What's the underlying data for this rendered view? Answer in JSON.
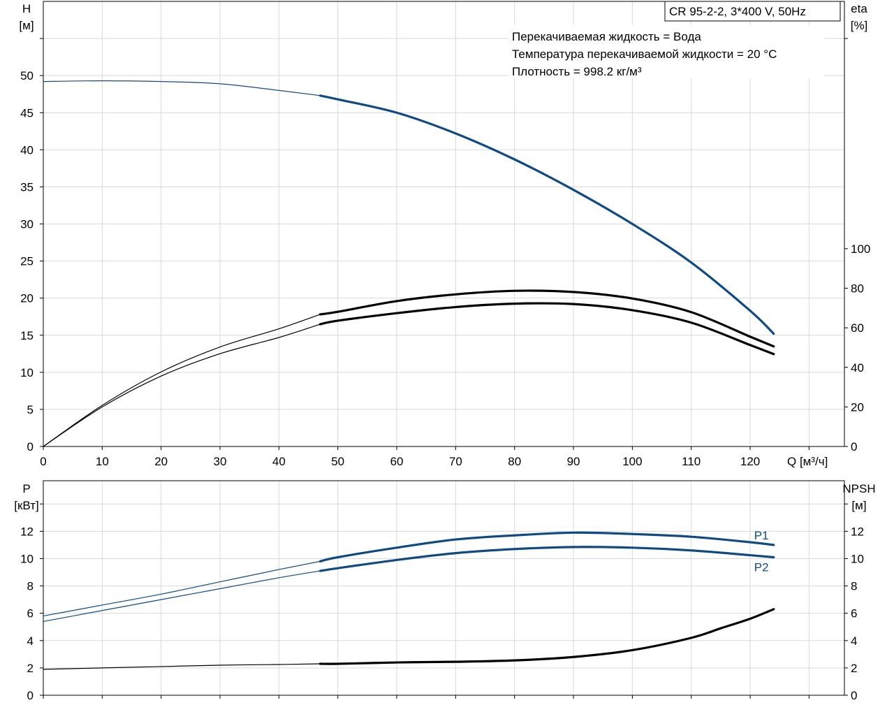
{
  "model_label": "CR 95-2-2, 3*400 V, 50Hz",
  "info_lines": [
    "Перекачиваемая жидкость = Вода",
    "Температура перекачиваемой жидкости = 20 °C",
    "Плотность = 998.2 кг/м³"
  ],
  "colors": {
    "blue": "#0f4a84",
    "black": "#000000",
    "grid": "#d9d9d9"
  },
  "chart_data": [
    {
      "type": "line",
      "id": "head-efficiency",
      "xlabel": "Q [м³/ч]",
      "ylabel_left": [
        "H",
        "[м]"
      ],
      "ylabel_right": [
        "eta",
        "[%]"
      ],
      "xlim": [
        0,
        136
      ],
      "ylim_left": [
        0,
        60
      ],
      "ylim_right": [
        0,
        225
      ],
      "x_ticks": [
        0,
        10,
        20,
        30,
        40,
        50,
        60,
        70,
        80,
        90,
        100,
        110,
        120
      ],
      "y_ticks_left": [
        0,
        5,
        10,
        15,
        20,
        25,
        30,
        35,
        40,
        45,
        50
      ],
      "y_ticks_right": [
        0,
        20,
        40,
        60,
        80,
        100
      ],
      "grid": true,
      "series": [
        {
          "axis": "left",
          "color": "blue",
          "x": [
            0,
            10,
            20,
            30,
            40,
            47,
            50,
            60,
            70,
            80,
            90,
            100,
            110,
            120,
            124
          ],
          "y": [
            49.2,
            49.3,
            49.2,
            48.9,
            48.0,
            47.3,
            46.8,
            45.0,
            42.2,
            38.7,
            34.6,
            30.0,
            24.8,
            18.3,
            15.2
          ]
        },
        {
          "axis": "right",
          "color": "black",
          "x": [
            0,
            10,
            20,
            30,
            40,
            47,
            50,
            60,
            70,
            80,
            90,
            100,
            110,
            120,
            124
          ],
          "y": [
            0,
            20.8,
            37.7,
            50.3,
            59.5,
            66.8,
            68.1,
            73.5,
            76.9,
            78.7,
            78.1,
            74.8,
            67.9,
            55.5,
            50.6
          ]
        },
        {
          "axis": "right",
          "color": "black",
          "x": [
            0,
            10,
            20,
            30,
            40,
            47,
            50,
            60,
            70,
            80,
            90,
            100,
            110,
            120,
            124
          ],
          "y": [
            0,
            20.0,
            35.6,
            46.9,
            55.1,
            61.8,
            63.6,
            67.4,
            70.5,
            72.2,
            72.0,
            68.9,
            62.6,
            51.3,
            46.7
          ]
        }
      ]
    },
    {
      "type": "line",
      "id": "power-npsh",
      "ylabel_left": [
        "P",
        "[кВт]"
      ],
      "ylabel_right": [
        "NPSH",
        "[м]"
      ],
      "xlim": [
        0,
        136
      ],
      "ylim_left": [
        0,
        15.7
      ],
      "ylim_right": [
        0,
        15.7
      ],
      "y_ticks_left": [
        0,
        2,
        4,
        6,
        8,
        10,
        12
      ],
      "y_ticks_right": [
        0,
        2,
        4,
        6,
        8,
        10,
        12
      ],
      "grid": true,
      "series": [
        {
          "name": "P1",
          "axis": "left",
          "color": "blue",
          "x": [
            0,
            10,
            20,
            30,
            40,
            47,
            50,
            60,
            70,
            80,
            90,
            100,
            110,
            120,
            124
          ],
          "y": [
            5.8,
            6.6,
            7.4,
            8.3,
            9.2,
            9.8,
            10.1,
            10.8,
            11.4,
            11.7,
            11.9,
            11.8,
            11.6,
            11.2,
            11.0
          ]
        },
        {
          "name": "P2",
          "axis": "left",
          "color": "blue",
          "x": [
            0,
            10,
            20,
            30,
            40,
            47,
            50,
            60,
            70,
            80,
            90,
            100,
            110,
            120,
            124
          ],
          "y": [
            5.4,
            6.2,
            7.0,
            7.8,
            8.6,
            9.1,
            9.3,
            9.9,
            10.4,
            10.7,
            10.85,
            10.8,
            10.6,
            10.25,
            10.1
          ]
        },
        {
          "axis": "right",
          "color": "black",
          "x": [
            0,
            10,
            20,
            30,
            40,
            47,
            50,
            60,
            70,
            80,
            90,
            100,
            110,
            115,
            120,
            124
          ],
          "y": [
            1.9,
            2.0,
            2.1,
            2.2,
            2.25,
            2.3,
            2.3,
            2.4,
            2.45,
            2.55,
            2.8,
            3.3,
            4.2,
            4.9,
            5.6,
            6.3
          ]
        }
      ]
    }
  ]
}
